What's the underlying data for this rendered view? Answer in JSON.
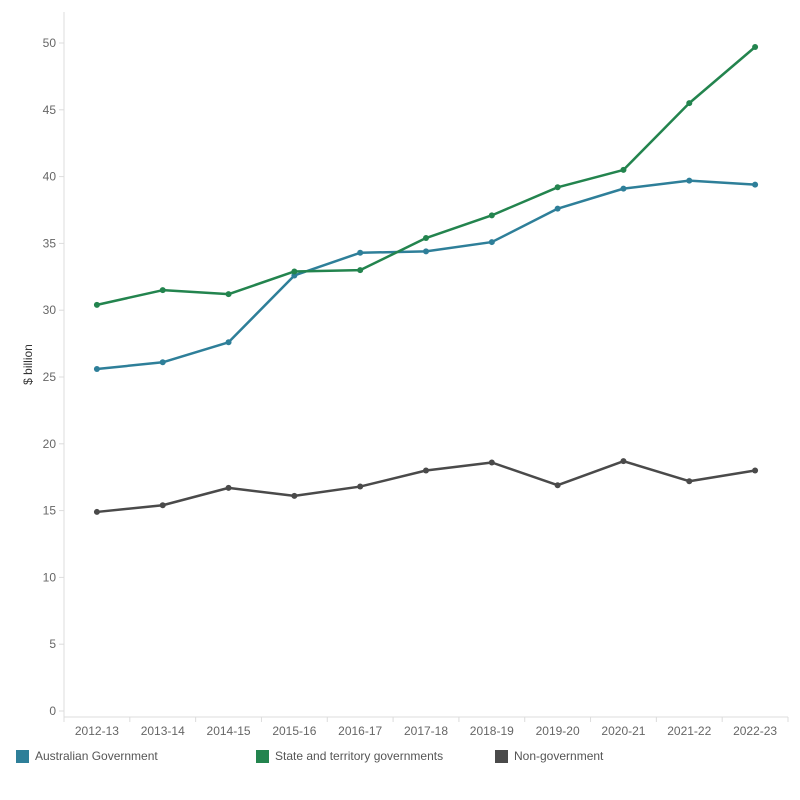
{
  "chart_data": {
    "type": "line",
    "title": "",
    "xlabel": "",
    "ylabel": "$ billion",
    "ylim": [
      0,
      52
    ],
    "yticks": [
      0,
      5,
      10,
      15,
      20,
      25,
      30,
      35,
      40,
      45,
      50
    ],
    "grid": false,
    "legend_position": "bottom",
    "categories": [
      "2012-13",
      "2013-14",
      "2014-15",
      "2015-16",
      "2016-17",
      "2017-18",
      "2018-19",
      "2019-20",
      "2020-21",
      "2021-22",
      "2022-23"
    ],
    "series": [
      {
        "name": "Australian Government",
        "color": "#2e7f99",
        "values": [
          25.6,
          26.1,
          27.6,
          32.6,
          34.3,
          34.4,
          35.1,
          37.6,
          39.1,
          39.7,
          39.4
        ]
      },
      {
        "name": "State and territory governments",
        "color": "#23844e",
        "values": [
          30.4,
          31.5,
          31.2,
          32.9,
          33.0,
          35.4,
          37.1,
          39.2,
          40.5,
          45.5,
          49.7
        ]
      },
      {
        "name": "Non-government",
        "color": "#4a4a4a",
        "values": [
          14.9,
          15.4,
          16.7,
          16.1,
          16.8,
          18.0,
          18.6,
          16.9,
          18.7,
          17.2,
          18.0
        ]
      }
    ]
  }
}
